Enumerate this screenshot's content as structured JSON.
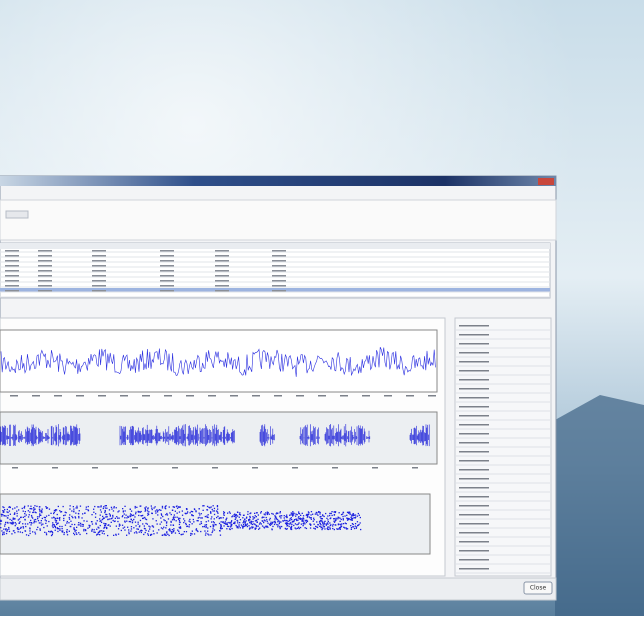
{
  "window": {
    "close_button": "Close"
  }
}
